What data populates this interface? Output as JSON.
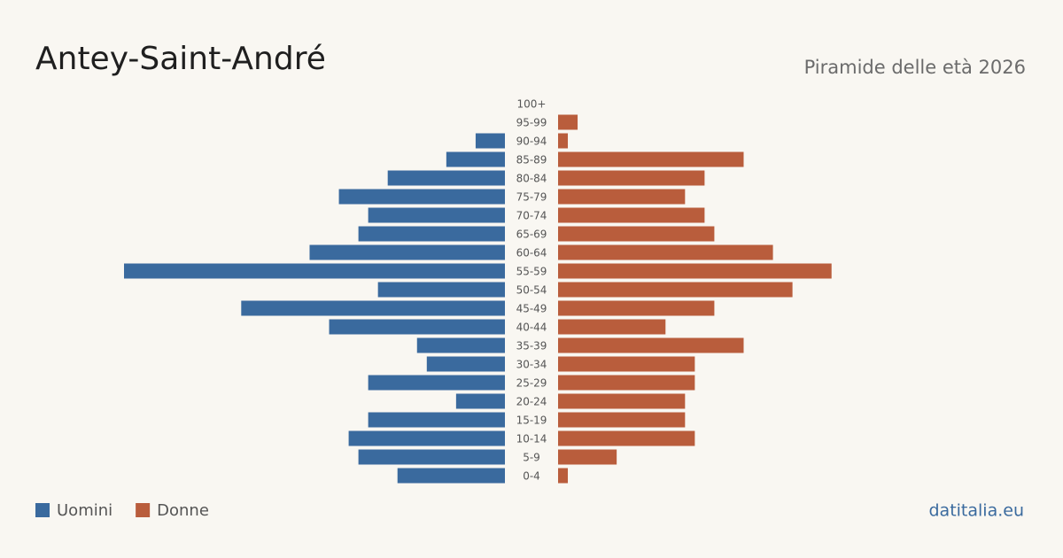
{
  "chart_data": {
    "type": "pyramid",
    "title": "Antey-Saint-André",
    "subtitle": "Piramide delle età 2026",
    "source": "datitalia.eu",
    "categories": [
      "100+",
      "95-99",
      "90-94",
      "85-89",
      "80-84",
      "75-79",
      "70-74",
      "65-69",
      "60-64",
      "55-59",
      "50-54",
      "45-49",
      "40-44",
      "35-39",
      "30-34",
      "25-29",
      "20-24",
      "15-19",
      "10-14",
      "5-9",
      "0-4"
    ],
    "series": [
      {
        "name": "Uomini",
        "color": "#3a6a9e",
        "values": [
          0,
          0,
          3,
          6,
          12,
          17,
          14,
          15,
          20,
          39,
          13,
          27,
          18,
          9,
          8,
          14,
          5,
          14,
          16,
          15,
          11
        ]
      },
      {
        "name": "Donne",
        "color": "#b95d3c",
        "values": [
          0,
          2,
          1,
          19,
          15,
          13,
          15,
          16,
          22,
          28,
          24,
          16,
          11,
          19,
          14,
          14,
          13,
          13,
          14,
          6,
          1
        ]
      }
    ]
  }
}
